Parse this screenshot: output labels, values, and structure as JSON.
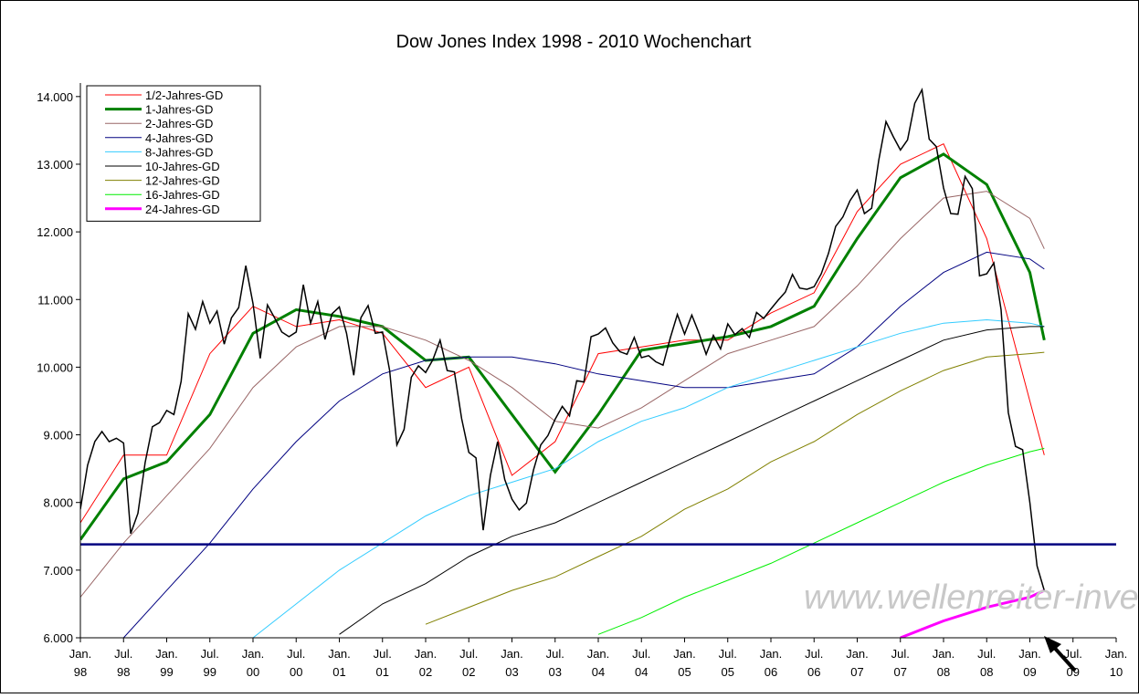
{
  "chart_data": {
    "type": "line",
    "title": "Dow Jones Index 1998 - 2010 Wochenchart",
    "watermark": "www.wellenreiter-invest.de",
    "xlim": [
      "1998-01",
      "2010-01"
    ],
    "ylim": [
      6000,
      14200
    ],
    "yticks": [
      {
        "value": 6000,
        "label": "6.000"
      },
      {
        "value": 7000,
        "label": "7.000"
      },
      {
        "value": 8000,
        "label": "8.000"
      },
      {
        "value": 9000,
        "label": "9.000"
      },
      {
        "value": 10000,
        "label": "10.000"
      },
      {
        "value": 11000,
        "label": "11.000"
      },
      {
        "value": 12000,
        "label": "12.000"
      },
      {
        "value": 13000,
        "label": "13.000"
      },
      {
        "value": 14000,
        "label": "14.000"
      }
    ],
    "xticks": [
      {
        "value": "1998-01",
        "label": "Jan. 98"
      },
      {
        "value": "1998-07",
        "label": "Jul. 98"
      },
      {
        "value": "1999-01",
        "label": "Jan. 99"
      },
      {
        "value": "1999-07",
        "label": "Jul. 99"
      },
      {
        "value": "2000-01",
        "label": "Jan. 00"
      },
      {
        "value": "2000-07",
        "label": "Jul. 00"
      },
      {
        "value": "2001-01",
        "label": "Jan. 01"
      },
      {
        "value": "2001-07",
        "label": "Jul. 01"
      },
      {
        "value": "2002-01",
        "label": "Jan. 02"
      },
      {
        "value": "2002-07",
        "label": "Jul. 02"
      },
      {
        "value": "2003-01",
        "label": "Jan. 03"
      },
      {
        "value": "2003-07",
        "label": "Jul. 03"
      },
      {
        "value": "2004-01",
        "label": "Jan. 04"
      },
      {
        "value": "2004-07",
        "label": "Jul. 04"
      },
      {
        "value": "2005-01",
        "label": "Jan. 05"
      },
      {
        "value": "2005-07",
        "label": "Jul. 05"
      },
      {
        "value": "2006-01",
        "label": "Jan. 06"
      },
      {
        "value": "2006-07",
        "label": "Jul. 06"
      },
      {
        "value": "2007-01",
        "label": "Jan. 07"
      },
      {
        "value": "2007-07",
        "label": "Jul. 07"
      },
      {
        "value": "2008-01",
        "label": "Jan. 08"
      },
      {
        "value": "2008-07",
        "label": "Jul. 08"
      },
      {
        "value": "2009-01",
        "label": "Jan. 09"
      },
      {
        "value": "2009-07",
        "label": "Jul. 09"
      },
      {
        "value": "2010-01",
        "label": "Jan. 10"
      }
    ],
    "hline": {
      "value": 7380,
      "color": "#000080"
    },
    "price": {
      "color": "#000000",
      "x": [
        "1998-01",
        "1998-02",
        "1998-03",
        "1998-04",
        "1998-05",
        "1998-06",
        "1998-07",
        "1998-08",
        "1998-09",
        "1998-10",
        "1998-11",
        "1998-12",
        "1999-01",
        "1999-02",
        "1999-03",
        "1999-04",
        "1999-05",
        "1999-06",
        "1999-07",
        "1999-08",
        "1999-09",
        "1999-10",
        "1999-11",
        "1999-12",
        "2000-01",
        "2000-02",
        "2000-03",
        "2000-04",
        "2000-05",
        "2000-06",
        "2000-07",
        "2000-08",
        "2000-09",
        "2000-10",
        "2000-11",
        "2000-12",
        "2001-01",
        "2001-02",
        "2001-03",
        "2001-04",
        "2001-05",
        "2001-06",
        "2001-07",
        "2001-08",
        "2001-09",
        "2001-10",
        "2001-11",
        "2001-12",
        "2002-01",
        "2002-02",
        "2002-03",
        "2002-04",
        "2002-05",
        "2002-06",
        "2002-07",
        "2002-08",
        "2002-09",
        "2002-10",
        "2002-11",
        "2002-12",
        "2003-01",
        "2003-02",
        "2003-03",
        "2003-04",
        "2003-05",
        "2003-06",
        "2003-07",
        "2003-08",
        "2003-09",
        "2003-10",
        "2003-11",
        "2003-12",
        "2004-01",
        "2004-02",
        "2004-03",
        "2004-04",
        "2004-05",
        "2004-06",
        "2004-07",
        "2004-08",
        "2004-09",
        "2004-10",
        "2004-11",
        "2004-12",
        "2005-01",
        "2005-02",
        "2005-03",
        "2005-04",
        "2005-05",
        "2005-06",
        "2005-07",
        "2005-08",
        "2005-09",
        "2005-10",
        "2005-11",
        "2005-12",
        "2006-01",
        "2006-02",
        "2006-03",
        "2006-04",
        "2006-05",
        "2006-06",
        "2006-07",
        "2006-08",
        "2006-09",
        "2006-10",
        "2006-11",
        "2006-12",
        "2007-01",
        "2007-02",
        "2007-03",
        "2007-04",
        "2007-05",
        "2007-06",
        "2007-07",
        "2007-08",
        "2007-09",
        "2007-10",
        "2007-11",
        "2007-12",
        "2008-01",
        "2008-02",
        "2008-03",
        "2008-04",
        "2008-05",
        "2008-06",
        "2008-07",
        "2008-08",
        "2008-09",
        "2008-10",
        "2008-11",
        "2008-12",
        "2009-01",
        "2009-02",
        "2009-03"
      ],
      "values": [
        7900,
        8550,
        8900,
        9050,
        8900,
        8950,
        8880,
        7540,
        7840,
        8590,
        9120,
        9180,
        9360,
        9300,
        9790,
        10790,
        10560,
        10970,
        10650,
        10830,
        10340,
        10730,
        10880,
        11500,
        10940,
        10130,
        10920,
        10730,
        10520,
        10450,
        10520,
        11220,
        10650,
        10970,
        10410,
        10790,
        10890,
        10500,
        9880,
        10730,
        10910,
        10500,
        10520,
        9950,
        8850,
        9080,
        9850,
        10020,
        9920,
        10110,
        10400,
        9950,
        9930,
        9240,
        8740,
        8660,
        7590,
        8400,
        8900,
        8340,
        8050,
        7890,
        7990,
        8480,
        8850,
        8990,
        9230,
        9420,
        9280,
        9800,
        9780,
        10450,
        10490,
        10580,
        10360,
        10230,
        10190,
        10440,
        10140,
        10170,
        10080,
        10030,
        10430,
        10780,
        10490,
        10770,
        10500,
        10190,
        10470,
        10270,
        10640,
        10480,
        10570,
        10440,
        10810,
        10720,
        10860,
        10990,
        11110,
        11370,
        11170,
        11150,
        11190,
        11380,
        11680,
        12080,
        12220,
        12460,
        12620,
        12270,
        12350,
        13060,
        13630,
        13410,
        13210,
        13360,
        13900,
        14100,
        13370,
        13260,
        12650,
        12270,
        12260,
        12820,
        12640,
        11350,
        11380,
        11540,
        10850,
        9330,
        8830,
        8780,
        8000,
        7060,
        6700
      ]
    },
    "series": [
      {
        "name": "1/2-Jahres-GD",
        "color": "#ff0000",
        "width": 1,
        "x": [
          "1998-01",
          "1998-07",
          "1999-01",
          "1999-07",
          "2000-01",
          "2000-07",
          "2001-01",
          "2001-07",
          "2002-01",
          "2002-07",
          "2003-01",
          "2003-07",
          "2004-01",
          "2004-07",
          "2005-01",
          "2005-07",
          "2006-01",
          "2006-07",
          "2007-01",
          "2007-07",
          "2008-01",
          "2008-07",
          "2009-01",
          "2009-03"
        ],
        "values": [
          7700,
          8700,
          8700,
          10200,
          10900,
          10600,
          10700,
          10500,
          9700,
          10000,
          8400,
          8900,
          10200,
          10300,
          10400,
          10400,
          10800,
          11100,
          12300,
          13000,
          13300,
          11900,
          9500,
          8700
        ]
      },
      {
        "name": "1-Jahres-GD",
        "color": "#008000",
        "width": 3,
        "x": [
          "1998-01",
          "1998-07",
          "1999-01",
          "1999-07",
          "2000-01",
          "2000-07",
          "2001-01",
          "2001-07",
          "2002-01",
          "2002-07",
          "2003-01",
          "2003-07",
          "2004-01",
          "2004-07",
          "2005-01",
          "2005-07",
          "2006-01",
          "2006-07",
          "2007-01",
          "2007-07",
          "2008-01",
          "2008-07",
          "2009-01",
          "2009-03"
        ],
        "values": [
          7450,
          8350,
          8600,
          9300,
          10500,
          10850,
          10750,
          10600,
          10100,
          10150,
          9300,
          8450,
          9300,
          10250,
          10350,
          10450,
          10600,
          10900,
          11900,
          12800,
          13150,
          12700,
          11400,
          10400
        ]
      },
      {
        "name": "2-Jahres-GD",
        "color": "#996666",
        "width": 1,
        "x": [
          "1998-01",
          "1998-07",
          "1999-01",
          "1999-07",
          "2000-01",
          "2000-07",
          "2001-01",
          "2001-07",
          "2002-01",
          "2002-07",
          "2003-01",
          "2003-07",
          "2004-01",
          "2004-07",
          "2005-01",
          "2005-07",
          "2006-01",
          "2006-07",
          "2007-01",
          "2007-07",
          "2008-01",
          "2008-07",
          "2009-01",
          "2009-03"
        ],
        "values": [
          6600,
          7400,
          8100,
          8800,
          9700,
          10300,
          10600,
          10600,
          10400,
          10100,
          9700,
          9200,
          9100,
          9400,
          9800,
          10200,
          10400,
          10600,
          11200,
          11900,
          12500,
          12600,
          12200,
          11750
        ]
      },
      {
        "name": "4-Jahres-GD",
        "color": "#000080",
        "width": 1,
        "x": [
          "1998-07",
          "1999-01",
          "1999-07",
          "2000-01",
          "2000-07",
          "2001-01",
          "2001-07",
          "2002-01",
          "2002-07",
          "2003-01",
          "2003-07",
          "2004-01",
          "2004-07",
          "2005-01",
          "2005-07",
          "2006-01",
          "2006-07",
          "2007-01",
          "2007-07",
          "2008-01",
          "2008-07",
          "2009-01",
          "2009-03"
        ],
        "values": [
          6000,
          6700,
          7400,
          8200,
          8900,
          9500,
          9900,
          10100,
          10150,
          10150,
          10050,
          9900,
          9800,
          9700,
          9700,
          9800,
          9900,
          10300,
          10900,
          11400,
          11700,
          11600,
          11450
        ]
      },
      {
        "name": "8-Jahres-GD",
        "color": "#33ccff",
        "width": 1,
        "x": [
          "2000-01",
          "2000-07",
          "2001-01",
          "2001-07",
          "2002-01",
          "2002-07",
          "2003-01",
          "2003-07",
          "2004-01",
          "2004-07",
          "2005-01",
          "2005-07",
          "2006-01",
          "2006-07",
          "2007-01",
          "2007-07",
          "2008-01",
          "2008-07",
          "2009-01",
          "2009-03"
        ],
        "values": [
          6000,
          6500,
          7000,
          7400,
          7800,
          8100,
          8300,
          8500,
          8900,
          9200,
          9400,
          9700,
          9900,
          10100,
          10300,
          10500,
          10650,
          10700,
          10650,
          10600
        ]
      },
      {
        "name": "10-Jahres-GD",
        "color": "#000000",
        "width": 1,
        "x": [
          "2001-01",
          "2001-07",
          "2002-01",
          "2002-07",
          "2003-01",
          "2003-07",
          "2004-01",
          "2004-07",
          "2005-01",
          "2005-07",
          "2006-01",
          "2006-07",
          "2007-01",
          "2007-07",
          "2008-01",
          "2008-07",
          "2009-01",
          "2009-03"
        ],
        "values": [
          6050,
          6500,
          6800,
          7200,
          7500,
          7700,
          8000,
          8300,
          8600,
          8900,
          9200,
          9500,
          9800,
          10100,
          10400,
          10550,
          10600,
          10600
        ]
      },
      {
        "name": "12-Jahres-GD",
        "color": "#808000",
        "width": 1,
        "x": [
          "2002-01",
          "2002-07",
          "2003-01",
          "2003-07",
          "2004-01",
          "2004-07",
          "2005-01",
          "2005-07",
          "2006-01",
          "2006-07",
          "2007-01",
          "2007-07",
          "2008-01",
          "2008-07",
          "2009-01",
          "2009-03"
        ],
        "values": [
          6200,
          6450,
          6700,
          6900,
          7200,
          7500,
          7900,
          8200,
          8600,
          8900,
          9300,
          9650,
          9950,
          10150,
          10200,
          10220
        ]
      },
      {
        "name": "16-Jahres-GD",
        "color": "#00ee00",
        "width": 1,
        "x": [
          "2004-01",
          "2004-07",
          "2005-01",
          "2005-07",
          "2006-01",
          "2006-07",
          "2007-01",
          "2007-07",
          "2008-01",
          "2008-07",
          "2009-01",
          "2009-03"
        ],
        "values": [
          6050,
          6300,
          6600,
          6850,
          7100,
          7400,
          7700,
          8000,
          8300,
          8550,
          8750,
          8800
        ]
      },
      {
        "name": "24-Jahres-GD",
        "color": "#ff00ff",
        "width": 3,
        "x": [
          "2007-07",
          "2008-01",
          "2008-07",
          "2009-01",
          "2009-03"
        ],
        "values": [
          6000,
          6250,
          6450,
          6600,
          6700
        ]
      }
    ]
  }
}
